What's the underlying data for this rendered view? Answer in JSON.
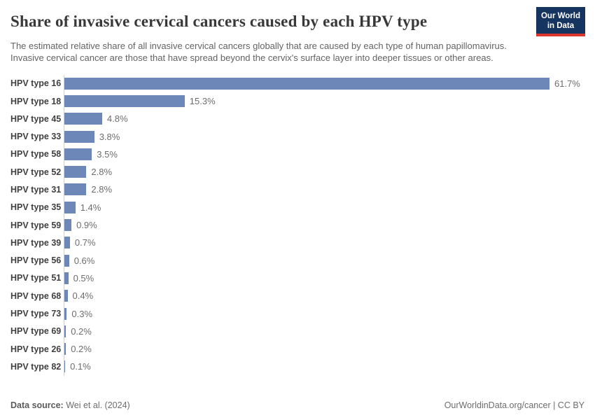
{
  "header": {
    "title": "Share of invasive cervical cancers caused by each HPV type",
    "subtitle": "The estimated relative share of all invasive cervical cancers globally that are caused by each type of human papillomavirus. Invasive cervical cancer are those that have spread beyond the cervix's surface layer into deeper tissues or other areas.",
    "logo": {
      "line1": "Our World",
      "line2": "in Data"
    }
  },
  "chart_data": {
    "type": "bar",
    "orientation": "horizontal",
    "title": "Share of invasive cervical cancers caused by each HPV type",
    "categories": [
      "HPV type 16",
      "HPV type 18",
      "HPV type 45",
      "HPV type 33",
      "HPV type 58",
      "HPV type 52",
      "HPV type 31",
      "HPV type 35",
      "HPV type 59",
      "HPV type 39",
      "HPV type 56",
      "HPV type 51",
      "HPV type 68",
      "HPV type 73",
      "HPV type 69",
      "HPV type 26",
      "HPV type 82"
    ],
    "values": [
      61.7,
      15.3,
      4.8,
      3.8,
      3.5,
      2.8,
      2.8,
      1.4,
      0.9,
      0.7,
      0.6,
      0.5,
      0.4,
      0.3,
      0.2,
      0.2,
      0.1
    ],
    "value_labels": [
      "61.7%",
      "15.3%",
      "4.8%",
      "3.8%",
      "3.5%",
      "2.8%",
      "2.8%",
      "1.4%",
      "0.9%",
      "0.7%",
      "0.6%",
      "0.5%",
      "0.4%",
      "0.3%",
      "0.2%",
      "0.2%",
      "0.1%"
    ],
    "xlim": [
      0,
      61.7
    ],
    "grid": false,
    "legend": "none",
    "bar_color": "#6c87b8"
  },
  "footer": {
    "datasource_label": "Data source:",
    "datasource_value": " Wei et al. (2024)",
    "credit": "OurWorldinData.org/cancer | CC BY"
  },
  "colors": {
    "bar": "#6c87b8",
    "axis_line": "#d0d0d0",
    "logo_background": "#153460",
    "logo_red": "#dc352d",
    "title_text": "#383838",
    "subtitle_text": "#636363",
    "label_text": "#404040",
    "value_text": "#6d6d6d"
  }
}
